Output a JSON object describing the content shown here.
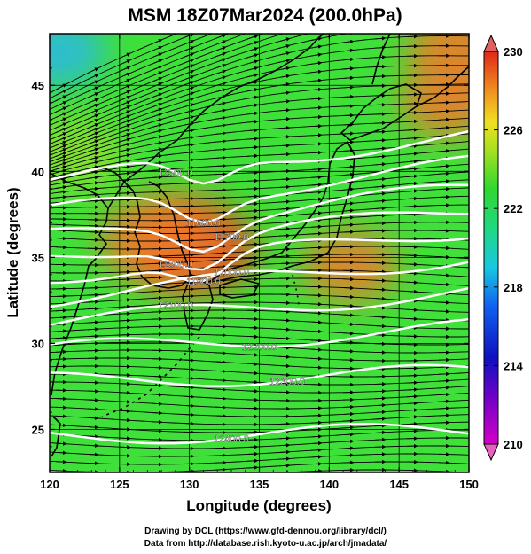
{
  "title": "MSM 18Z07Mar2024 (200.0hPa)",
  "xlabel": "Longitude (degrees)",
  "ylabel": "Latitude  (degrees)",
  "x_ticks": [
    "120",
    "125",
    "130",
    "135",
    "140",
    "145",
    "150"
  ],
  "y_ticks": [
    "45",
    "40",
    "35",
    "30",
    "25"
  ],
  "colorbar_ticks": [
    "230",
    "226",
    "222",
    "218",
    "214",
    "210"
  ],
  "contour_labels": [
    "11500.0",
    "11600.0",
    "11700.0",
    "11800.0",
    "11900.0",
    "12000.0",
    "12100.0",
    "12200.0",
    "12300.0",
    "12400.0"
  ],
  "credits": {
    "line1": "Drawing by DCL (https://www.gfd-dennou.org/library/dcl/)",
    "line2": "Data from http://database.rish.kyoto-u.ac.jp/arch/jmadata/"
  },
  "colors": {
    "base_field": "#3fe03a",
    "warm": "#f07a2a",
    "hot": "#e84a20",
    "cool": "#2ab8e8",
    "contour": "#ffffff",
    "coast": "#000000"
  },
  "chart_data": {
    "type": "heatmap",
    "x_range": [
      120,
      150
    ],
    "y_range": [
      22.5,
      48
    ],
    "variable_range": [
      210,
      230
    ],
    "field_anomalies": [
      {
        "lon": 130.5,
        "lat": 35.5,
        "value": 229
      },
      {
        "lon": 128.0,
        "lat": 36.0,
        "value": 228
      },
      {
        "lon": 150.0,
        "lat": 47.0,
        "value": 228
      },
      {
        "lon": 148.5,
        "lat": 44.0,
        "value": 227
      },
      {
        "lon": 141.5,
        "lat": 34.5,
        "value": 227
      },
      {
        "lon": 120.5,
        "lat": 47.0,
        "value": 219
      },
      {
        "lon": 122.0,
        "lat": 41.0,
        "value": 221
      }
    ],
    "height_contours": [
      {
        "label": "11500.0",
        "lat_west": 39.5,
        "lat_east": 42.0
      },
      {
        "label": "11600.0",
        "lat_west": 37.6,
        "lat_east": 40.4
      },
      {
        "label": "11700.0",
        "lat_west": 36.2,
        "lat_east": 39.0
      },
      {
        "label": "11800.0",
        "lat_west": 35.0,
        "lat_east": 37.8
      },
      {
        "label": "11900.0",
        "lat_west": 33.9,
        "lat_east": 36.6
      },
      {
        "label": "12000.0",
        "lat_west": 32.6,
        "lat_east": 35.0
      },
      {
        "label": "12100.0",
        "lat_west": 31.2,
        "lat_east": 33.0
      },
      {
        "label": "12200.0",
        "lat_west": 29.6,
        "lat_east": 30.9
      },
      {
        "label": "12300.0",
        "lat_west": 27.8,
        "lat_east": 28.3
      },
      {
        "label": "12400.0",
        "lat_west": 24.6,
        "lat_east": 24.9
      }
    ]
  }
}
